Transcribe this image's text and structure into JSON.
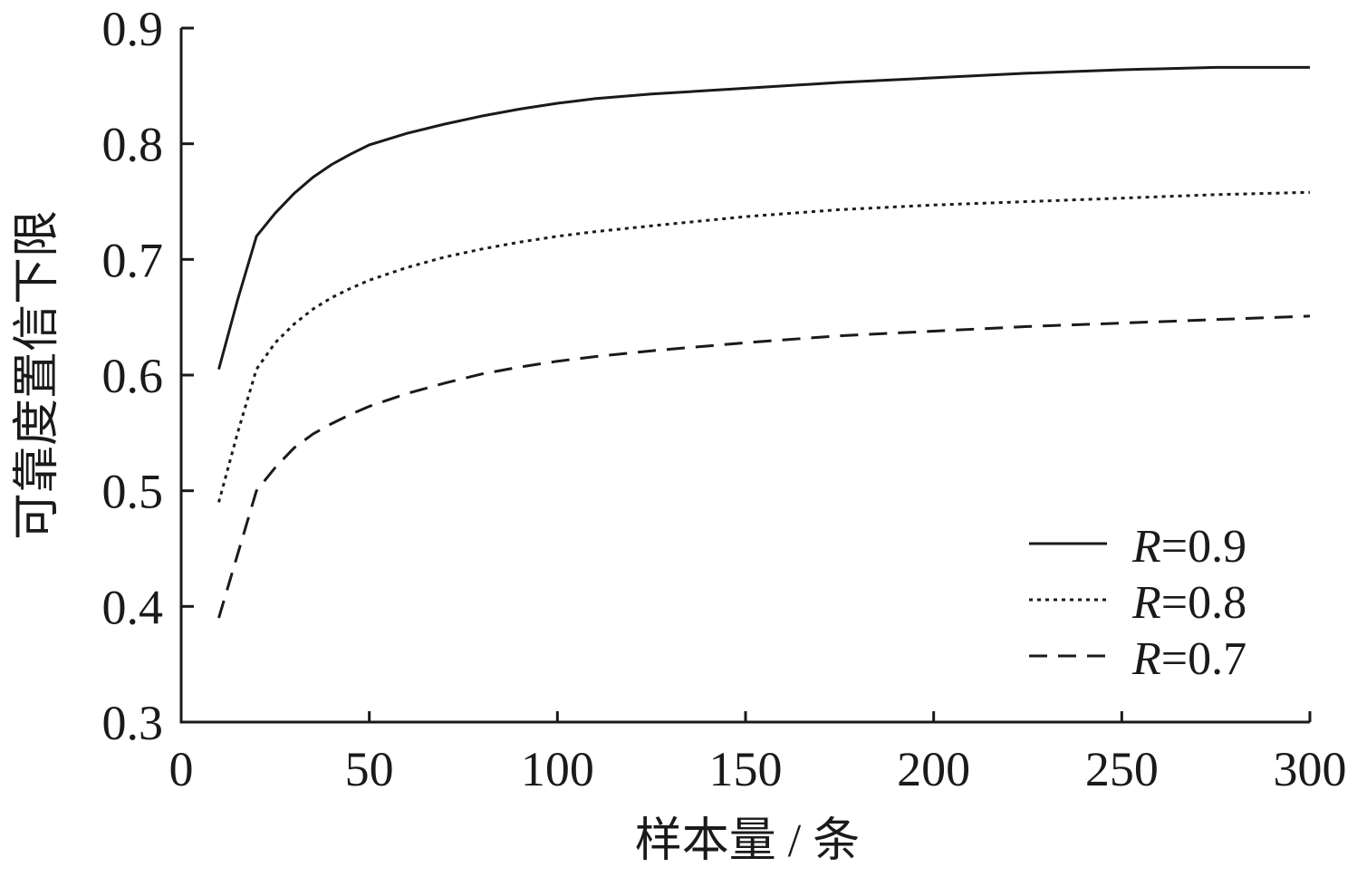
{
  "chart_data": {
    "type": "line",
    "xlabel": "样本量 / 条",
    "ylabel": "可靠度置信下限",
    "xlim": [
      0,
      300
    ],
    "ylim": [
      0.3,
      0.9
    ],
    "xticks": [
      "0",
      "50",
      "100",
      "150",
      "200",
      "250",
      "300"
    ],
    "yticks": [
      "0.3",
      "0.4",
      "0.5",
      "0.6",
      "0.7",
      "0.8",
      "0.9"
    ],
    "grid": false,
    "legend_position": "bottom-right",
    "series": [
      {
        "name": "R=0.9",
        "name_italic": "R",
        "name_rest": "=0.9",
        "style": "solid",
        "x": [
          10,
          15,
          20,
          25,
          30,
          35,
          40,
          45,
          50,
          60,
          70,
          80,
          90,
          100,
          110,
          125,
          150,
          175,
          200,
          225,
          250,
          275,
          300
        ],
        "y": [
          0.605,
          0.665,
          0.72,
          0.74,
          0.757,
          0.771,
          0.782,
          0.791,
          0.799,
          0.809,
          0.817,
          0.824,
          0.83,
          0.835,
          0.839,
          0.843,
          0.848,
          0.853,
          0.857,
          0.861,
          0.864,
          0.866,
          0.866
        ]
      },
      {
        "name": "R=0.8",
        "name_italic": "R",
        "name_rest": "=0.8",
        "style": "dotted",
        "x": [
          10,
          15,
          20,
          25,
          30,
          35,
          40,
          45,
          50,
          60,
          70,
          80,
          90,
          100,
          110,
          125,
          150,
          175,
          200,
          225,
          250,
          275,
          300
        ],
        "y": [
          0.49,
          0.55,
          0.605,
          0.628,
          0.644,
          0.657,
          0.667,
          0.675,
          0.682,
          0.693,
          0.702,
          0.709,
          0.715,
          0.72,
          0.724,
          0.729,
          0.737,
          0.743,
          0.747,
          0.75,
          0.753,
          0.756,
          0.758
        ]
      },
      {
        "name": "R=0.7",
        "name_italic": "R",
        "name_rest": "=0.7",
        "style": "dashed",
        "x": [
          10,
          15,
          20,
          25,
          30,
          35,
          40,
          45,
          50,
          60,
          70,
          80,
          90,
          100,
          110,
          125,
          150,
          175,
          200,
          225,
          250,
          275,
          300
        ],
        "y": [
          0.39,
          0.445,
          0.5,
          0.52,
          0.537,
          0.549,
          0.558,
          0.566,
          0.573,
          0.584,
          0.593,
          0.601,
          0.607,
          0.612,
          0.616,
          0.621,
          0.628,
          0.634,
          0.638,
          0.642,
          0.645,
          0.648,
          0.651
        ]
      }
    ]
  }
}
